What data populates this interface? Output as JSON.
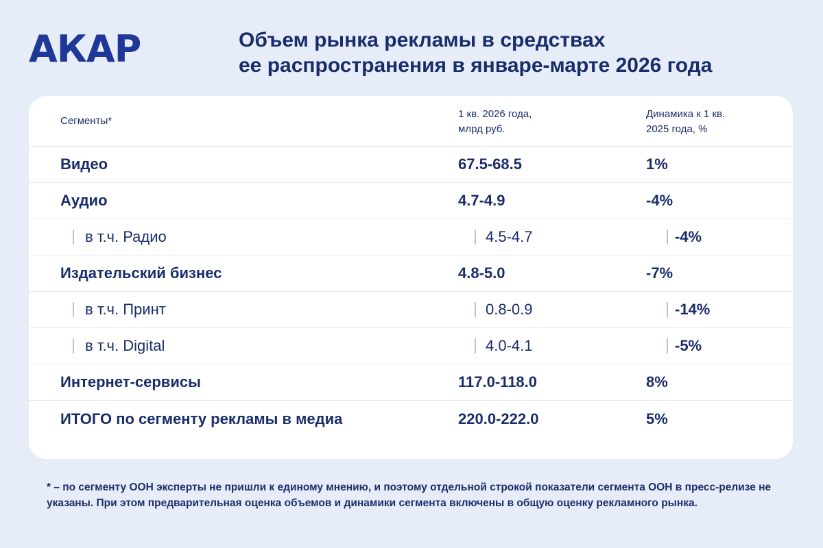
{
  "logo": "АКАР",
  "title_line1": "Объем рынка рекламы в средствах",
  "title_line2": "ее распространения в январе-марте 2026 года",
  "chart_data": {
    "type": "table",
    "title": "Объем рынка рекламы в средствах ее распространения в январе-марте 2026 года",
    "columns": {
      "segment": "Сегменты*",
      "value_line1": "1 кв. 2026 года,",
      "value_line2": "млрд руб.",
      "dynamics_line1": "Динамика к 1 кв.",
      "dynamics_line2": "2025 года, %"
    },
    "rows": [
      {
        "segment": "Видео",
        "value": "67.5-68.5",
        "dynamics": "1%",
        "level": "main"
      },
      {
        "segment": "Аудио",
        "value": "4.7-4.9",
        "dynamics": "-4%",
        "level": "main"
      },
      {
        "segment": "в т.ч. Радио",
        "value": "4.5-4.7",
        "dynamics": "-4%",
        "level": "sub"
      },
      {
        "segment": "Издательский бизнес",
        "value": "4.8-5.0",
        "dynamics": "-7%",
        "level": "main"
      },
      {
        "segment": "в т.ч. Принт",
        "value": "0.8-0.9",
        "dynamics": "-14%",
        "level": "sub"
      },
      {
        "segment": "в т.ч. Digital",
        "value": "4.0-4.1",
        "dynamics": "-5%",
        "level": "sub"
      },
      {
        "segment": "Интернет-сервисы",
        "value": "117.0-118.0",
        "dynamics": "8%",
        "level": "main"
      },
      {
        "segment": "ИТОГО по сегменту рекламы в медиа",
        "value": "220.0-222.0",
        "dynamics": "5%",
        "level": "total"
      }
    ]
  },
  "footnote": "* – по сегменту ООН эксперты не пришли к единому мнению, и поэтому отдельной строкой показатели сегмента ООН в пресс-релизе не указаны. При этом предварительная оценка объемов и динамики сегмента включены в общую оценку рекламного рынка.",
  "colors": {
    "background": "#e6edf8",
    "card": "#ffffff",
    "text": "#1a2d6b",
    "logo": "#1f3797",
    "divider": "#e4e9f2",
    "sub_bar": "#b8c2d8"
  }
}
